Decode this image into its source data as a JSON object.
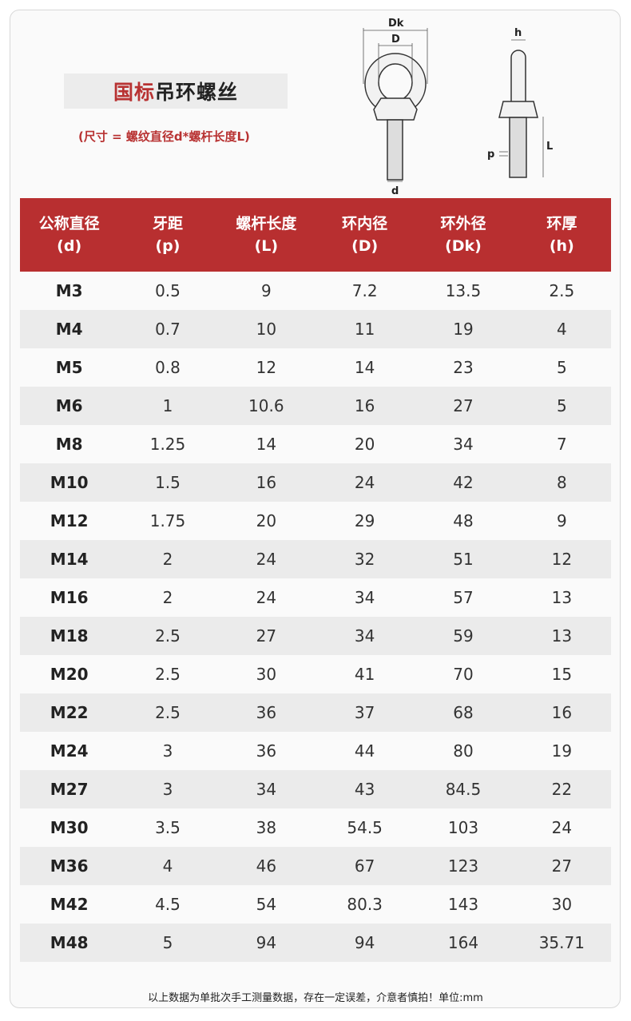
{
  "title": {
    "highlight": "国标",
    "rest": "吊环螺丝"
  },
  "subtitle": "(尺寸 = 螺纹直径d*螺杆长度L)",
  "diagram": {
    "labels": {
      "dk": "Dk",
      "d_inner": "D",
      "d": "d",
      "h": "h",
      "l": "L",
      "p": "p"
    }
  },
  "table": {
    "headers": [
      {
        "name": "公称直径",
        "sym": "(d)"
      },
      {
        "name": "牙距",
        "sym": "(p)"
      },
      {
        "name": "螺杆长度",
        "sym": "(L)"
      },
      {
        "name": "环内径",
        "sym": "(D)"
      },
      {
        "name": "环外径",
        "sym": "(Dk)"
      },
      {
        "name": "环厚",
        "sym": "(h)"
      }
    ],
    "rows": [
      [
        "M3",
        "0.5",
        "9",
        "7.2",
        "13.5",
        "2.5"
      ],
      [
        "M4",
        "0.7",
        "10",
        "11",
        "19",
        "4"
      ],
      [
        "M5",
        "0.8",
        "12",
        "14",
        "23",
        "5"
      ],
      [
        "M6",
        "1",
        "10.6",
        "16",
        "27",
        "5"
      ],
      [
        "M8",
        "1.25",
        "14",
        "20",
        "34",
        "7"
      ],
      [
        "M10",
        "1.5",
        "16",
        "24",
        "42",
        "8"
      ],
      [
        "M12",
        "1.75",
        "20",
        "29",
        "48",
        "9"
      ],
      [
        "M14",
        "2",
        "24",
        "32",
        "51",
        "12"
      ],
      [
        "M16",
        "2",
        "24",
        "34",
        "57",
        "13"
      ],
      [
        "M18",
        "2.5",
        "27",
        "34",
        "59",
        "13"
      ],
      [
        "M20",
        "2.5",
        "30",
        "41",
        "70",
        "15"
      ],
      [
        "M22",
        "2.5",
        "36",
        "37",
        "68",
        "16"
      ],
      [
        "M24",
        "3",
        "36",
        "44",
        "80",
        "19"
      ],
      [
        "M27",
        "3",
        "34",
        "43",
        "84.5",
        "22"
      ],
      [
        "M30",
        "3.5",
        "38",
        "54.5",
        "103",
        "24"
      ],
      [
        "M36",
        "4",
        "46",
        "67",
        "123",
        "27"
      ],
      [
        "M42",
        "4.5",
        "54",
        "80.3",
        "143",
        "30"
      ],
      [
        "M48",
        "5",
        "94",
        "94",
        "164",
        "35.71"
      ]
    ]
  },
  "footer": "以上数据为单批次手工测量数据，存在一定误差，介意者慎拍！单位:mm",
  "colors": {
    "accent": "#b82f30",
    "stripe": "#ebebeb"
  }
}
